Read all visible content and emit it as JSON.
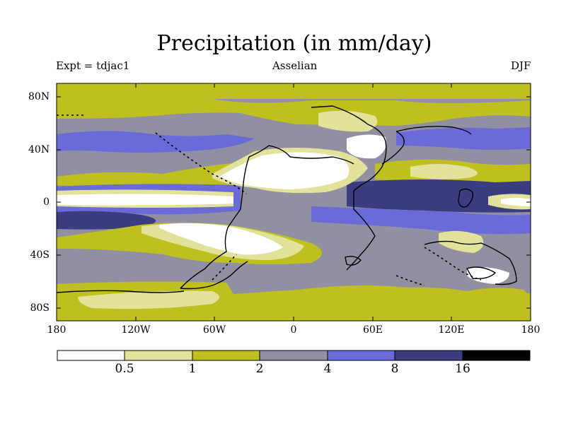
{
  "title": "Precipitation (in mm/day)",
  "experiment": "Expt = tdjac1",
  "stage": "Asselian",
  "season": "DJF",
  "lat_labels": [
    "80N",
    "40N",
    "0",
    "40S",
    "80S"
  ],
  "lon_labels": [
    "180",
    "120W",
    "60W",
    "0",
    "60E",
    "120E",
    "180"
  ],
  "colorbar": {
    "levels": [
      "0.5",
      "1",
      "2",
      "4",
      "8",
      "16"
    ],
    "colors": [
      "#ffffff",
      "#e2e29a",
      "#bfbf20",
      "#9090a2",
      "#6a6ad8",
      "#3c3c80",
      "#000000"
    ]
  },
  "map_colors": {
    "lt_yellow": "#e2e29a",
    "olive": "#bfbf20",
    "grey": "#9090a2",
    "blue": "#6a6ad8",
    "dark_blue": "#3c3c80",
    "white": "#ffffff"
  }
}
